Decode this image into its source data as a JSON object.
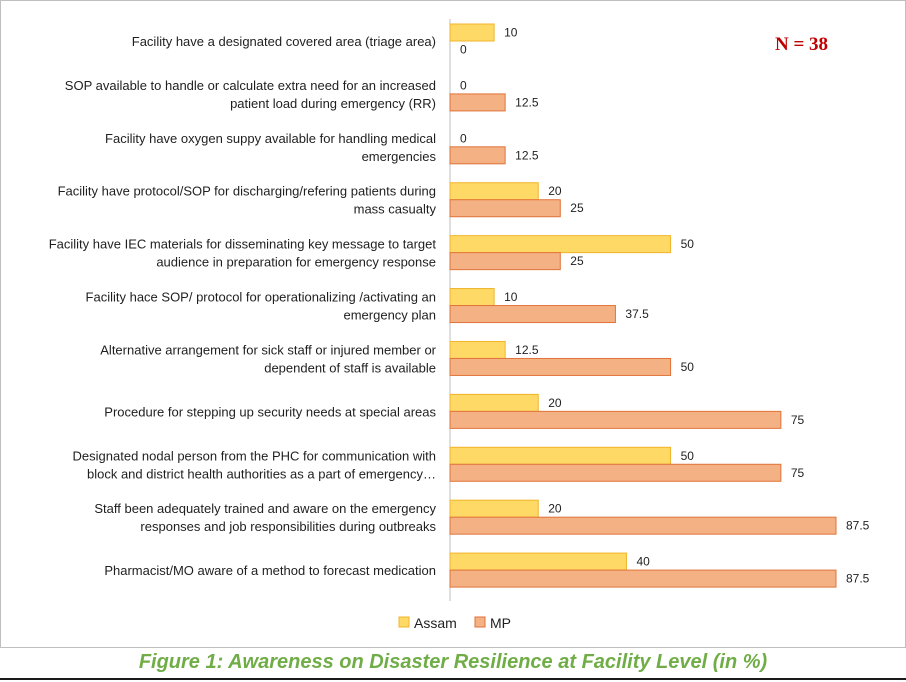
{
  "chart_data": {
    "type": "bar",
    "orientation": "horizontal",
    "categories": [
      [
        "Facility have a designated covered area (triage area)"
      ],
      [
        "SOP available to handle or calculate extra need for an increased",
        "patient load during emergency (RR)"
      ],
      [
        "Facility have oxygen suppy available for handling medical",
        "emergencies"
      ],
      [
        "Facility have protocol/SOP for discharging/refering patients during",
        "mass casualty"
      ],
      [
        "Facility have IEC materials for disseminating key message to target",
        "audience in preparation for emergency response"
      ],
      [
        "Facility hace SOP/ protocol for operationalizing /activating an",
        "emergency plan"
      ],
      [
        "Alternative arrangement for sick staff or injured member or",
        "dependent of staff is available"
      ],
      [
        "Procedure for stepping up security needs at special areas"
      ],
      [
        "Designated nodal person from the PHC for communication with",
        "block and district health authorities as a part of emergency…"
      ],
      [
        "Staff been adequately trained and aware on the emergency",
        "responses and job responsibilities during outbreaks"
      ],
      [
        "Pharmacist/MO aware of a method to forecast medication"
      ]
    ],
    "series": [
      {
        "name": "Assam",
        "color": "#FFD966",
        "stroke": "#F0B429",
        "values": [
          10,
          0,
          0,
          20,
          50,
          10,
          12.5,
          20,
          50,
          20,
          40
        ]
      },
      {
        "name": "MP",
        "color": "#F4B183",
        "stroke": "#E0733A",
        "values": [
          0,
          12.5,
          12.5,
          25,
          25,
          37.5,
          50,
          75,
          75,
          87.5,
          87.5
        ]
      }
    ],
    "xlim": [
      0,
      87.5
    ],
    "grid": false,
    "legend": "bottom-center",
    "annotation": "N = 38",
    "annotation_color": "#C00000"
  },
  "caption": "Figure 1: Awareness on Disaster Resilience at Facility Level (in %)",
  "caption_color": "#70AD47"
}
